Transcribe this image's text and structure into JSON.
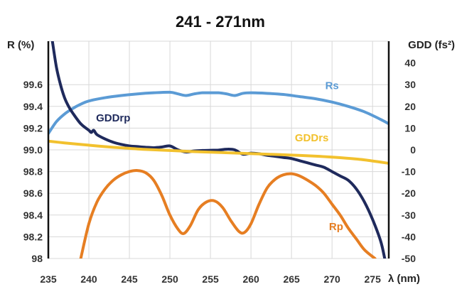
{
  "chart_data": {
    "type": "line",
    "title": "241 - 271nm",
    "xlabel": "λ (nm)",
    "ylabel_left": "R (%)",
    "ylabel_right": "GDD (fs²)",
    "xlim": [
      235,
      277
    ],
    "ylim_left": [
      98.0,
      100.0
    ],
    "ylim_right": [
      -50,
      50
    ],
    "x_ticks": [
      235,
      240,
      245,
      250,
      255,
      260,
      265,
      270,
      275
    ],
    "y_left_ticks": [
      98,
      98.2,
      98.4,
      98.6,
      98.8,
      99.0,
      99.2,
      99.4,
      99.6
    ],
    "y_left_tick_labels": [
      "98",
      "98.2",
      "98.4",
      "98.6",
      "98.8",
      "99.0",
      "99.2",
      "99.4",
      "99.6"
    ],
    "y_right_ticks": [
      -50,
      -40,
      -30,
      -20,
      -10,
      0,
      10,
      20,
      30,
      40
    ],
    "grid": true,
    "series": [
      {
        "name": "Rs",
        "axis": "left",
        "color": "#5b9bd5",
        "label_at": [
          270,
          99.56
        ],
        "x": [
          235,
          236,
          237,
          238,
          239,
          240,
          242,
          244,
          246,
          248,
          250,
          251,
          252,
          253,
          254,
          255,
          256,
          257,
          258,
          259,
          260,
          262,
          264,
          266,
          268,
          270,
          272,
          274,
          276,
          277
        ],
        "y": [
          99.15,
          99.26,
          99.33,
          99.38,
          99.42,
          99.45,
          99.48,
          99.5,
          99.515,
          99.525,
          99.53,
          99.515,
          99.5,
          99.515,
          99.525,
          99.525,
          99.525,
          99.515,
          99.5,
          99.52,
          99.525,
          99.52,
          99.51,
          99.49,
          99.47,
          99.44,
          99.4,
          99.35,
          99.28,
          99.24
        ]
      },
      {
        "name": "Rp",
        "axis": "left",
        "color": "#e67e22",
        "label_at": [
          270.5,
          98.26
        ],
        "x": [
          239,
          240,
          241,
          242,
          243,
          244,
          245,
          246,
          247,
          248,
          249,
          250,
          251,
          251.7,
          252.5,
          253.5,
          254.5,
          255.5,
          256.5,
          257.5,
          258.5,
          259.2,
          260,
          261,
          262,
          263,
          264,
          265,
          266,
          267,
          268,
          269,
          270,
          271,
          272,
          273,
          274,
          275.3
        ],
        "y": [
          98.0,
          98.32,
          98.52,
          98.64,
          98.72,
          98.77,
          98.8,
          98.81,
          98.79,
          98.72,
          98.58,
          98.4,
          98.27,
          98.23,
          98.3,
          98.45,
          98.52,
          98.53,
          98.47,
          98.35,
          98.25,
          98.24,
          98.32,
          98.5,
          98.65,
          98.73,
          98.77,
          98.78,
          98.76,
          98.72,
          98.67,
          98.6,
          98.5,
          98.4,
          98.28,
          98.18,
          98.08,
          98.0
        ]
      },
      {
        "name": "GDDrp",
        "axis": "right",
        "color": "#1f2a5c",
        "label_at": [
          243,
          13
        ],
        "x": [
          235.5,
          236,
          236.5,
          237,
          237.5,
          238,
          239,
          240,
          240.3,
          240.6,
          241,
          242,
          243,
          244,
          245,
          246,
          247,
          248,
          249,
          250,
          251,
          252,
          253,
          254,
          255,
          256,
          257,
          258,
          259,
          260,
          261,
          262,
          263,
          264,
          265,
          266,
          267,
          268,
          269,
          270,
          271,
          272,
          273,
          274,
          275,
          276,
          276.5
        ],
        "y": [
          50,
          38,
          30,
          24,
          20,
          17,
          12,
          9,
          8,
          9,
          7,
          5,
          3.5,
          2.5,
          1.8,
          1.5,
          1.2,
          1.0,
          1.3,
          1.8,
          0,
          -1,
          -0.5,
          -0.3,
          -0.2,
          -0.1,
          0.3,
          0,
          -2,
          -1.5,
          -1.8,
          -2.5,
          -3,
          -3.5,
          -4,
          -5,
          -6,
          -7,
          -8,
          -10,
          -12,
          -14,
          -18,
          -24,
          -32,
          -42,
          -50
        ]
      },
      {
        "name": "GDDrs",
        "axis": "right",
        "color": "#f2c12e",
        "label_at": [
          267.5,
          4
        ],
        "x": [
          235,
          237,
          239,
          241,
          243,
          245,
          247,
          250,
          253,
          256,
          259,
          262,
          265,
          268,
          271,
          274,
          277
        ],
        "y": [
          4,
          3.2,
          2.5,
          1.8,
          1.2,
          0.7,
          0.2,
          -0.3,
          -0.8,
          -1.2,
          -1.6,
          -2.0,
          -2.4,
          -2.9,
          -3.6,
          -4.6,
          -6.2
        ]
      }
    ]
  }
}
